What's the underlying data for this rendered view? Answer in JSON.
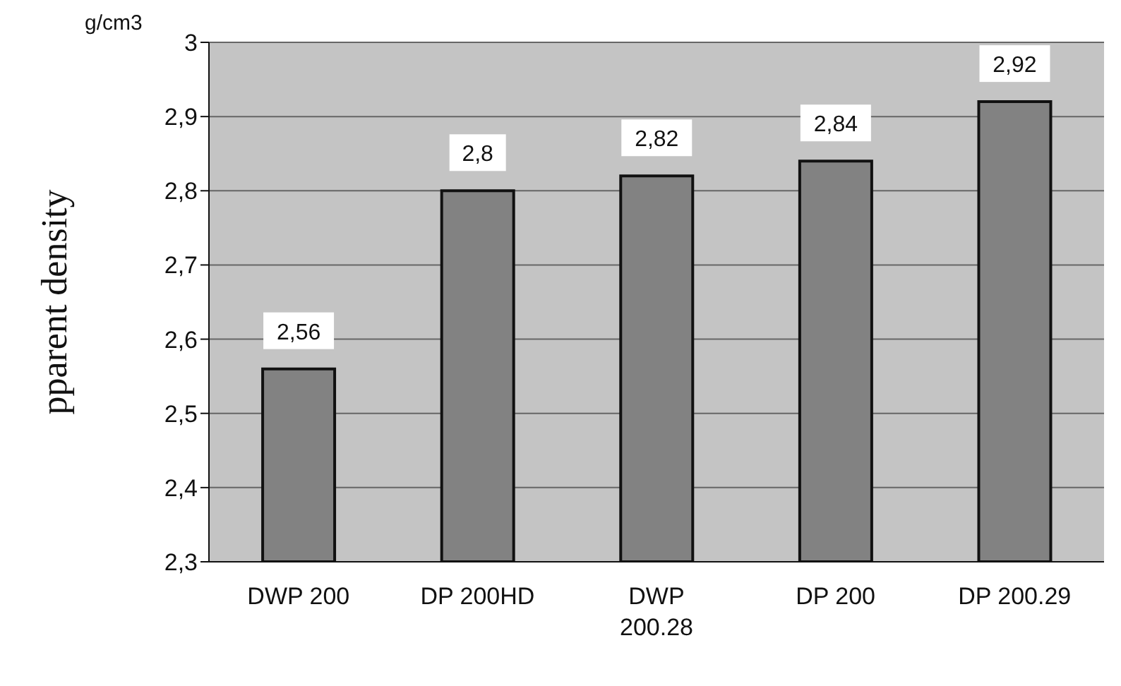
{
  "chart_data": {
    "type": "bar",
    "ylabel": "pparent density",
    "annotations": [
      "g/cm3"
    ],
    "categories": [
      "DWP 200",
      "DP 200HD",
      "DWP 200.28",
      "DP 200",
      "DP 200.29"
    ],
    "values": [
      2.56,
      2.8,
      2.82,
      2.84,
      2.92
    ],
    "value_labels": [
      "2,56",
      "2,8",
      "2,82",
      "2,84",
      "2,92"
    ],
    "color": "#828282",
    "ylim": [
      2.3,
      3
    ],
    "yticks": [
      {
        "value": 2.3,
        "label": "2,3"
      },
      {
        "value": 2.4,
        "label": "2,4"
      },
      {
        "value": 2.5,
        "label": "2,5"
      },
      {
        "value": 2.6,
        "label": "2,6"
      },
      {
        "value": 2.7,
        "label": "2,7"
      },
      {
        "value": 2.8,
        "label": "2,8"
      },
      {
        "value": 2.9,
        "label": "2,9"
      },
      {
        "value": 3,
        "label": "3"
      }
    ],
    "grid": "y"
  }
}
